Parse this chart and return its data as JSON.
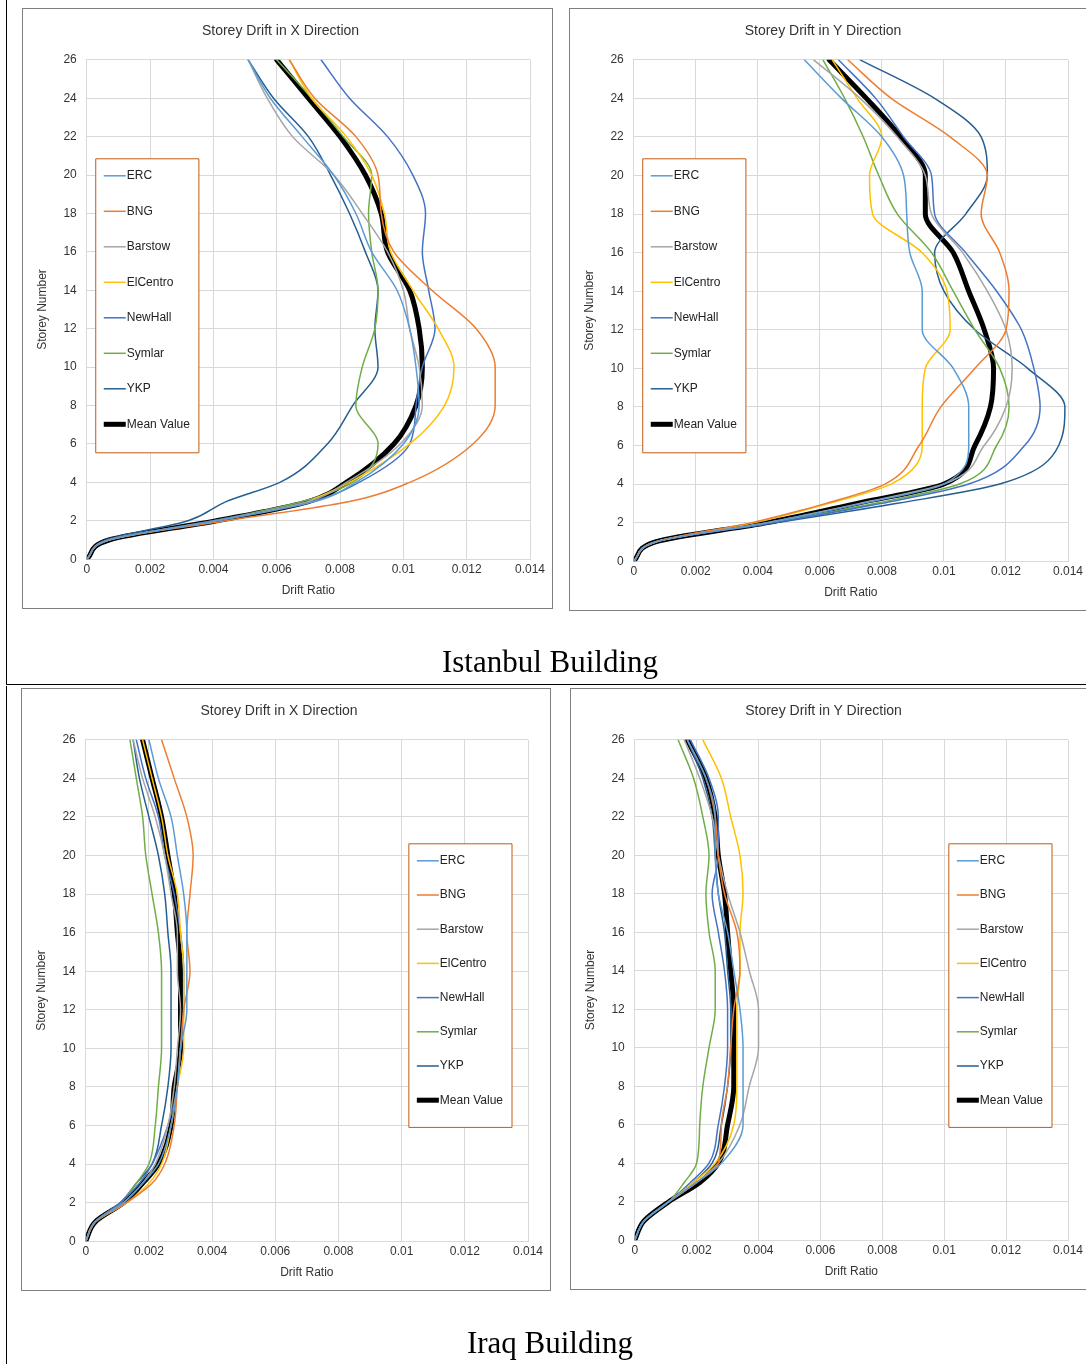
{
  "chart_data": [
    {
      "type": "line",
      "title": "Storey Drift in X Direction",
      "xlabel": "Drift Ratio",
      "ylabel": "Storey Number",
      "annotations": [
        "Istanbul Building"
      ],
      "xlim": [
        0,
        0.014
      ],
      "xticks": [
        0,
        0.002,
        0.004,
        0.006,
        0.008,
        0.01,
        0.012,
        0.014
      ],
      "ylim": [
        0,
        26
      ],
      "yticks": [
        0,
        2,
        4,
        6,
        8,
        10,
        12,
        14,
        16,
        18,
        20,
        22,
        24,
        26
      ],
      "grid": true,
      "legend": "left",
      "marker": "none",
      "line_style": "solid",
      "series": [
        {
          "name": "ERC",
          "color": "#5b9bd5",
          "x": [
            0,
            0.0007,
            0.0041,
            0.0072,
            0.0085,
            0.01,
            0.0105,
            0.0104,
            0.0102,
            0.0098,
            0.009,
            0.0085,
            0.0078,
            0.0068,
            0.0058,
            0.0051
          ],
          "values": [
            0,
            1,
            2,
            3,
            4,
            6,
            8,
            10,
            12,
            14,
            16,
            18,
            20,
            22,
            24,
            26
          ]
        },
        {
          "name": "BNG",
          "color": "#ed7d31",
          "x": [
            0,
            0.0007,
            0.0044,
            0.0083,
            0.0102,
            0.0122,
            0.0129,
            0.0129,
            0.0123,
            0.0109,
            0.0097,
            0.0093,
            0.0092,
            0.0085,
            0.0072,
            0.0064
          ],
          "values": [
            0,
            1,
            2,
            3,
            4,
            6,
            8,
            10,
            12,
            14,
            16,
            18,
            20,
            22,
            24,
            26
          ]
        },
        {
          "name": "Barstow",
          "color": "#a5a5a5",
          "x": [
            0,
            0.0007,
            0.0041,
            0.007,
            0.0082,
            0.0099,
            0.0106,
            0.0105,
            0.0102,
            0.01,
            0.0095,
            0.0087,
            0.0078,
            0.0065,
            0.0057,
            0.0051
          ],
          "values": [
            0,
            1,
            2,
            3,
            4,
            6,
            8,
            10,
            12,
            14,
            16,
            18,
            20,
            22,
            24,
            26
          ]
        },
        {
          "name": "ElCentro",
          "color": "#ffc000",
          "x": [
            null,
            null,
            null,
            0.007,
            0.0083,
            0.0102,
            0.0113,
            0.0116,
            0.0111,
            0.0103,
            0.0096,
            0.0094,
            0.009,
            0.0082,
            0.0071,
            0.0064
          ],
          "values": [
            null,
            null,
            null,
            3,
            4,
            6,
            8,
            10,
            12,
            14,
            16,
            18,
            20,
            22,
            24,
            26
          ]
        },
        {
          "name": "NewHall",
          "color": "#4472c4",
          "x": [
            0,
            0.0007,
            0.004,
            0.0071,
            0.0086,
            0.0102,
            0.0104,
            0.0106,
            0.011,
            0.0108,
            0.0106,
            0.0107,
            0.0103,
            0.0095,
            0.0083,
            0.0074
          ],
          "values": [
            0,
            1,
            2,
            3,
            4,
            6,
            8,
            10,
            12,
            14,
            16,
            18,
            20,
            22,
            24,
            26
          ]
        },
        {
          "name": "Symlar",
          "color": "#70ad47",
          "x": [
            0,
            0.0007,
            0.004,
            0.0068,
            0.0084,
            0.0092,
            0.0085,
            0.0087,
            0.0091,
            0.0092,
            0.009,
            0.0089,
            0.009,
            0.0081,
            0.0071,
            0.006
          ],
          "values": [
            0,
            1,
            2,
            3,
            4,
            6,
            8,
            10,
            12,
            14,
            16,
            18,
            20,
            22,
            24,
            26
          ]
        },
        {
          "name": "YKP",
          "color": "#255e91",
          "x": [
            0,
            0.0006,
            0.0032,
            0.0044,
            0.0061,
            0.0076,
            0.0084,
            0.0092,
            0.0091,
            0.0092,
            0.0088,
            0.0083,
            0.0077,
            0.007,
            0.0059,
            0.0051
          ],
          "values": [
            0,
            1,
            2,
            3,
            4,
            6,
            8,
            10,
            12,
            14,
            16,
            18,
            20,
            22,
            24,
            26
          ]
        },
        {
          "name": "Mean Value",
          "color": "#000000",
          "x": [
            0,
            0.0007,
            0.0041,
            0.007,
            0.0082,
            0.0097,
            0.0104,
            0.0106,
            0.0105,
            0.0102,
            0.0095,
            0.0093,
            0.0088,
            0.008,
            0.007,
            0.006
          ],
          "values": [
            0,
            1,
            2,
            3,
            4,
            6,
            8,
            10,
            12,
            14,
            16,
            18,
            20,
            22,
            24,
            26
          ]
        }
      ]
    },
    {
      "type": "line",
      "title": "Storey Drift in Y Direction",
      "xlabel": "Drift Ratio",
      "ylabel": "Storey Number",
      "xlim": [
        0,
        0.014
      ],
      "xticks": [
        0,
        0.002,
        0.004,
        0.006,
        0.008,
        0.01,
        0.012,
        0.014
      ],
      "ylim": [
        0,
        26
      ],
      "yticks": [
        0,
        2,
        4,
        6,
        8,
        10,
        12,
        14,
        16,
        18,
        20,
        22,
        24,
        26
      ],
      "grid": true,
      "legend": "left",
      "marker": "none",
      "line_style": "solid",
      "series": [
        {
          "name": "ERC",
          "color": "#5b9bd5",
          "x": [
            0,
            0.0007,
            0.0043,
            0.0074,
            0.01,
            0.0108,
            0.0108,
            0.0103,
            0.0093,
            0.0093,
            0.0089,
            0.0088,
            0.0087,
            0.008,
            0.0067,
            0.0055
          ],
          "values": [
            0,
            1,
            2,
            3,
            4,
            6,
            8,
            10,
            12,
            14,
            16,
            18,
            20,
            22,
            24,
            26
          ]
        },
        {
          "name": "BNG",
          "color": "#ed7d31",
          "x": [
            0,
            0.0007,
            0.0038,
            0.0062,
            0.0081,
            0.0092,
            0.0099,
            0.011,
            0.012,
            0.0121,
            0.0118,
            0.0112,
            0.0114,
            0.0102,
            0.0083,
            0.0069
          ],
          "values": [
            0,
            1,
            2,
            3,
            4,
            6,
            8,
            10,
            12,
            14,
            16,
            18,
            20,
            22,
            24,
            26
          ]
        },
        {
          "name": "Barstow",
          "color": "#a5a5a5",
          "x": [
            0,
            0.0007,
            0.0043,
            0.0073,
            0.01,
            0.0113,
            0.012,
            0.0122,
            0.012,
            0.0114,
            0.0106,
            0.0096,
            0.0094,
            0.0085,
            0.0073,
            0.0058
          ],
          "values": [
            0,
            1,
            2,
            3,
            4,
            6,
            8,
            10,
            12,
            14,
            16,
            18,
            20,
            22,
            24,
            26
          ]
        },
        {
          "name": "ElCentro",
          "color": "#ffc000",
          "x": [
            0,
            0.0007,
            0.0039,
            0.0063,
            0.0083,
            0.0093,
            0.0093,
            0.0094,
            0.0102,
            0.0101,
            0.0093,
            0.0077,
            0.0076,
            0.008,
            0.0072,
            0.0064
          ],
          "values": [
            0,
            1,
            2,
            3,
            4,
            6,
            8,
            10,
            12,
            14,
            16,
            18,
            20,
            22,
            24,
            26
          ]
        },
        {
          "name": "NewHall",
          "color": "#4472c4",
          "x": [
            0,
            0.0007,
            0.0045,
            0.008,
            0.0108,
            0.0126,
            0.0131,
            0.0129,
            0.0125,
            0.0117,
            0.0107,
            0.0097,
            0.0096,
            0.0087,
            0.0078,
            0.0066
          ],
          "values": [
            0,
            1,
            2,
            3,
            4,
            6,
            8,
            10,
            12,
            14,
            16,
            18,
            20,
            22,
            24,
            26
          ]
        },
        {
          "name": "Symlar",
          "color": "#70ad47",
          "x": [
            0,
            0.0007,
            0.0044,
            0.0078,
            0.0105,
            0.0117,
            0.0121,
            0.0118,
            0.011,
            0.0103,
            0.0096,
            0.0085,
            0.0079,
            0.0074,
            0.0068,
            0.0061
          ],
          "values": [
            0,
            1,
            2,
            3,
            4,
            6,
            8,
            10,
            12,
            14,
            16,
            18,
            20,
            22,
            24,
            26
          ]
        },
        {
          "name": "YKP",
          "color": "#255e91",
          "x": [
            0,
            0.0007,
            0.0046,
            0.0085,
            0.0118,
            0.0137,
            0.0139,
            0.0127,
            0.011,
            0.01,
            0.0097,
            0.0107,
            0.0114,
            0.0112,
            0.0097,
            0.0073
          ],
          "values": [
            0,
            1,
            2,
            3,
            4,
            6,
            8,
            10,
            12,
            14,
            16,
            18,
            20,
            22,
            24,
            26
          ]
        },
        {
          "name": "Mean Value",
          "color": "#000000",
          "x": [
            0,
            0.0007,
            0.0043,
            0.0072,
            0.01,
            0.011,
            0.0115,
            0.0116,
            0.0113,
            0.0108,
            0.0103,
            0.0094,
            0.0094,
            0.0086,
            0.0075,
            0.0063
          ],
          "values": [
            0,
            1,
            2,
            3,
            4,
            6,
            8,
            10,
            12,
            14,
            16,
            18,
            20,
            22,
            24,
            26
          ]
        }
      ]
    },
    {
      "type": "line",
      "title": "Storey Drift in X Direction",
      "xlabel": "Drift Ratio",
      "ylabel": "Storey Number",
      "annotations": [
        "Iraq Building"
      ],
      "xlim": [
        0,
        0.014
      ],
      "xticks": [
        0,
        0.002,
        0.004,
        0.006,
        0.008,
        0.01,
        0.012,
        0.014
      ],
      "ylim": [
        0,
        26
      ],
      "yticks": [
        0,
        2,
        4,
        6,
        8,
        10,
        12,
        14,
        16,
        18,
        20,
        22,
        24,
        26
      ],
      "grid": true,
      "legend": "right",
      "marker": "none",
      "line_style": "solid",
      "series": [
        {
          "name": "ERC",
          "color": "#5b9bd5",
          "x": [
            0,
            0.0003,
            0.0012,
            0.0018,
            0.0023,
            0.0027,
            0.0029,
            0.003,
            0.0032,
            0.0032,
            0.0032,
            0.0031,
            0.0029,
            0.0027,
            0.0023,
            0.002
          ],
          "values": [
            0,
            1,
            2,
            3,
            4,
            6,
            8,
            10,
            12,
            14,
            16,
            18,
            20,
            22,
            24,
            26
          ]
        },
        {
          "name": "BNG",
          "color": "#ed7d31",
          "x": [
            0,
            0.0003,
            0.0013,
            0.0021,
            0.0025,
            0.0028,
            0.0029,
            0.003,
            0.0031,
            0.0033,
            0.0032,
            0.0033,
            0.0034,
            0.0032,
            0.0028,
            0.0024
          ],
          "values": [
            0,
            1,
            2,
            3,
            4,
            6,
            8,
            10,
            12,
            14,
            16,
            18,
            20,
            22,
            24,
            26
          ]
        },
        {
          "name": "Barstow",
          "color": "#a5a5a5",
          "x": [
            0,
            0.0003,
            0.0012,
            0.0018,
            0.0022,
            0.0026,
            0.0028,
            0.0029,
            0.003,
            0.0029,
            0.0029,
            0.0027,
            0.0025,
            0.0022,
            0.0018,
            0.0015
          ],
          "values": [
            0,
            1,
            2,
            3,
            4,
            6,
            8,
            10,
            12,
            14,
            16,
            18,
            20,
            22,
            24,
            26
          ]
        },
        {
          "name": "ElCentro",
          "color": "#ffc000",
          "x": [
            0,
            0.0003,
            0.0013,
            0.002,
            0.0024,
            0.0027,
            0.0029,
            0.0031,
            0.0031,
            0.0031,
            0.003,
            0.0029,
            0.0026,
            0.0024,
            0.0021,
            0.0018
          ],
          "values": [
            0,
            1,
            2,
            3,
            4,
            6,
            8,
            10,
            12,
            14,
            16,
            18,
            20,
            22,
            24,
            26
          ]
        },
        {
          "name": "NewHall",
          "color": "#4472c4",
          "x": [
            0,
            0.0003,
            0.0011,
            0.0017,
            0.0021,
            0.0026,
            0.0029,
            0.003,
            0.0031,
            0.0031,
            0.003,
            0.0028,
            0.0025,
            0.0023,
            0.0019,
            0.0016
          ],
          "values": [
            0,
            1,
            2,
            3,
            4,
            6,
            8,
            10,
            12,
            14,
            16,
            18,
            20,
            22,
            24,
            26
          ]
        },
        {
          "name": "Symlar",
          "color": "#70ad47",
          "x": [
            0,
            0.0003,
            0.0011,
            0.0016,
            0.002,
            0.0022,
            0.0023,
            0.0024,
            0.0024,
            0.0024,
            0.0023,
            0.0021,
            0.0019,
            0.0018,
            0.0016,
            0.0014
          ],
          "values": [
            0,
            1,
            2,
            3,
            4,
            6,
            8,
            10,
            12,
            14,
            16,
            18,
            20,
            22,
            24,
            26
          ]
        },
        {
          "name": "YKP",
          "color": "#255e91",
          "x": [
            0,
            0.0003,
            0.0011,
            0.0016,
            0.0021,
            0.0024,
            0.0026,
            0.0027,
            0.0027,
            0.0027,
            0.0026,
            0.0025,
            0.0023,
            0.002,
            0.0017,
            0.0015
          ],
          "values": [
            0,
            1,
            2,
            3,
            4,
            6,
            8,
            10,
            12,
            14,
            16,
            18,
            20,
            22,
            24,
            26
          ]
        },
        {
          "name": "Mean Value",
          "color": "#000000",
          "x": [
            0,
            0.0003,
            0.0012,
            0.0018,
            0.0023,
            0.0027,
            0.0028,
            0.003,
            0.003,
            0.003,
            0.0029,
            0.0028,
            0.0026,
            0.0024,
            0.0021,
            0.0018
          ],
          "values": [
            0,
            1,
            2,
            3,
            4,
            6,
            8,
            10,
            12,
            14,
            16,
            18,
            20,
            22,
            24,
            26
          ]
        }
      ]
    },
    {
      "type": "line",
      "title": "Storey Drift in Y Direction",
      "xlabel": "Drift Ratio",
      "ylabel": "Storey Number",
      "xlim": [
        0,
        0.014
      ],
      "xticks": [
        0,
        0.002,
        0.004,
        0.006,
        0.008,
        0.01,
        0.012,
        0.014
      ],
      "ylim": [
        0,
        26
      ],
      "yticks": [
        0,
        2,
        4,
        6,
        8,
        10,
        12,
        14,
        16,
        18,
        20,
        22,
        24,
        26
      ],
      "grid": true,
      "legend": "right",
      "marker": "none",
      "line_style": "solid",
      "series": [
        {
          "name": "ERC",
          "color": "#5b9bd5",
          "x": [
            0,
            0.0003,
            0.0011,
            0.002,
            0.0028,
            0.0035,
            0.0035,
            0.0035,
            0.0034,
            0.0032,
            0.003,
            0.0027,
            0.0026,
            0.0026,
            0.0023,
            0.0017
          ],
          "values": [
            0,
            1,
            2,
            3,
            4,
            6,
            8,
            10,
            12,
            14,
            16,
            18,
            20,
            22,
            24,
            26
          ]
        },
        {
          "name": "BNG",
          "color": "#ed7d31",
          "x": [
            null,
            null,
            0.0011,
            0.002,
            0.0027,
            0.0028,
            0.003,
            0.0031,
            0.0032,
            0.0034,
            0.0033,
            0.0029,
            0.0027,
            0.0026,
            0.0023,
            0.0017
          ],
          "values": [
            null,
            null,
            2,
            3,
            4,
            6,
            8,
            10,
            12,
            14,
            16,
            18,
            20,
            22,
            24,
            26
          ]
        },
        {
          "name": "Barstow",
          "color": "#a5a5a5",
          "x": [
            0,
            0.0003,
            0.0011,
            0.002,
            0.0027,
            0.0034,
            0.0037,
            0.004,
            0.004,
            0.0037,
            0.0034,
            0.003,
            0.0027,
            0.0025,
            0.0021,
            0.0016
          ],
          "values": [
            0,
            1,
            2,
            3,
            4,
            6,
            8,
            10,
            12,
            14,
            16,
            18,
            20,
            22,
            24,
            26
          ]
        },
        {
          "name": "ElCentro",
          "color": "#ffc000",
          "x": [
            null,
            null,
            0.0011,
            0.0019,
            0.0026,
            0.0032,
            0.0033,
            0.0033,
            0.0033,
            0.0034,
            0.0034,
            0.0035,
            0.0034,
            0.0031,
            0.0028,
            0.0022
          ],
          "values": [
            null,
            null,
            2,
            3,
            4,
            6,
            8,
            10,
            12,
            14,
            16,
            18,
            20,
            22,
            24,
            26
          ]
        },
        {
          "name": "NewHall",
          "color": "#4472c4",
          "x": [
            0,
            0.0003,
            0.0011,
            0.0018,
            0.0024,
            0.0027,
            0.0029,
            0.003,
            0.003,
            0.0029,
            0.0027,
            0.0025,
            0.0027,
            0.0027,
            0.0024,
            0.0018
          ],
          "values": [
            0,
            1,
            2,
            3,
            4,
            6,
            8,
            10,
            12,
            14,
            16,
            18,
            20,
            22,
            24,
            26
          ]
        },
        {
          "name": "Symlar",
          "color": "#70ad47",
          "x": [
            0,
            0.0003,
            0.0011,
            0.0016,
            0.002,
            0.0021,
            0.0022,
            0.0024,
            0.0026,
            0.0026,
            0.0024,
            0.0023,
            0.0024,
            0.0022,
            0.0019,
            0.0014
          ],
          "values": [
            0,
            1,
            2,
            3,
            4,
            6,
            8,
            10,
            12,
            14,
            16,
            18,
            20,
            22,
            24,
            26
          ]
        },
        {
          "name": "YKP",
          "color": "#255e91",
          "x": [
            0,
            0.0003,
            0.0011,
            0.0019,
            0.0025,
            0.0028,
            0.003,
            0.0031,
            0.0031,
            0.003,
            0.0029,
            0.0027,
            0.0026,
            0.0025,
            0.0022,
            0.0017
          ],
          "values": [
            0,
            1,
            2,
            3,
            4,
            6,
            8,
            10,
            12,
            14,
            16,
            18,
            20,
            22,
            24,
            26
          ]
        },
        {
          "name": "Mean Value",
          "color": "#000000",
          "x": [
            0,
            0.0003,
            0.0011,
            0.0021,
            0.0027,
            0.003,
            0.0032,
            0.0032,
            0.0032,
            0.0031,
            0.003,
            0.0029,
            0.0027,
            0.0026,
            0.0023,
            0.0017
          ],
          "values": [
            0,
            1,
            2,
            3,
            4,
            6,
            8,
            10,
            12,
            14,
            16,
            18,
            20,
            22,
            24,
            26
          ]
        }
      ]
    }
  ]
}
